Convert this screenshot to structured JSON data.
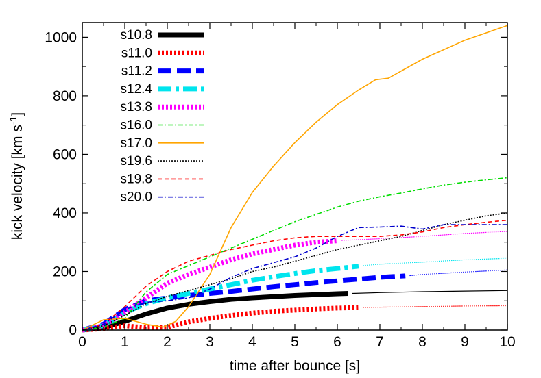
{
  "chart_data": {
    "type": "line",
    "xlabel": "time after bounce [s]",
    "ylabel": {
      "main": "kick velocity [km s",
      "sup": "-1",
      "close": "]"
    },
    "xlim": [
      0,
      10
    ],
    "ylim": [
      0,
      1050
    ],
    "xticks": [
      "0",
      "1",
      "2",
      "3",
      "4",
      "5",
      "6",
      "7",
      "8",
      "9",
      "10"
    ],
    "yticks": [
      "0",
      "200",
      "400",
      "600",
      "800",
      "1000"
    ],
    "series": [
      {
        "name": "s10.8",
        "color": "#000000",
        "style": "solid-thick",
        "x": [
          0,
          0.5,
          1,
          1.5,
          2,
          2.5,
          3,
          3.5,
          4,
          4.5,
          5,
          5.5,
          6,
          6.25
        ],
        "y": [
          0,
          8,
          30,
          55,
          75,
          88,
          97,
          105,
          110,
          114,
          118,
          121,
          124,
          125
        ],
        "tail_x": [
          6.35,
          7,
          8,
          9,
          10
        ],
        "tail_y": [
          125,
          128,
          131,
          133,
          135
        ]
      },
      {
        "name": "s11.0",
        "color": "#ff0000",
        "style": "dotted-thick",
        "x": [
          0,
          0.5,
          1,
          1.5,
          2,
          2.5,
          3,
          3.5,
          4,
          4.5,
          5,
          5.5,
          6,
          6.5
        ],
        "y": [
          0,
          5,
          15,
          8,
          10,
          28,
          40,
          50,
          58,
          64,
          68,
          72,
          75,
          77
        ],
        "tail_x": [
          6.6,
          7,
          8,
          9,
          10
        ],
        "tail_y": [
          77,
          78,
          80,
          82,
          83
        ]
      },
      {
        "name": "s11.2",
        "color": "#0000ff",
        "style": "dashed-thick",
        "x": [
          0,
          0.5,
          1,
          1.5,
          2,
          2.5,
          3,
          3.5,
          4,
          4.5,
          5,
          5.5,
          6,
          6.5,
          7,
          7.6
        ],
        "y": [
          0,
          20,
          70,
          100,
          110,
          118,
          125,
          132,
          140,
          148,
          155,
          162,
          168,
          174,
          180,
          185
        ],
        "tail_x": [
          7.7,
          8,
          9,
          10
        ],
        "tail_y": [
          186,
          190,
          198,
          205
        ]
      },
      {
        "name": "s12.4",
        "color": "#00e5ee",
        "style": "dashdot-thick",
        "x": [
          0,
          0.5,
          1,
          1.5,
          2,
          2.5,
          3,
          3.5,
          4,
          4.5,
          5,
          5.5,
          6,
          6.5
        ],
        "y": [
          0,
          15,
          60,
          90,
          110,
          125,
          140,
          155,
          170,
          182,
          193,
          203,
          210,
          218
        ],
        "tail_x": [
          6.6,
          7,
          8,
          9,
          10
        ],
        "tail_y": [
          220,
          225,
          232,
          240,
          245
        ]
      },
      {
        "name": "s13.8",
        "color": "#ff00ff",
        "style": "dotted-thick",
        "x": [
          0,
          0.5,
          1,
          1.5,
          2,
          2.5,
          3,
          3.5,
          4,
          4.5,
          5,
          5.5,
          6
        ],
        "y": [
          0,
          15,
          60,
          110,
          160,
          190,
          215,
          240,
          260,
          275,
          290,
          300,
          305
        ],
        "tail_x": [
          6.1,
          7,
          8,
          9,
          10
        ],
        "tail_y": [
          306,
          312,
          320,
          330,
          337
        ]
      },
      {
        "name": "s16.0",
        "color": "#00dd00",
        "style": "dashdot-thin",
        "x": [
          0,
          0.5,
          1,
          1.5,
          2,
          2.5,
          3,
          3.5,
          4,
          4.5,
          5,
          5.5,
          6,
          6.5,
          7,
          7.5,
          8,
          8.5,
          9,
          9.5,
          10
        ],
        "y": [
          0,
          10,
          40,
          130,
          190,
          220,
          250,
          280,
          310,
          340,
          370,
          395,
          420,
          440,
          455,
          468,
          482,
          495,
          505,
          513,
          520
        ]
      },
      {
        "name": "s17.0",
        "color": "#ffa500",
        "style": "solid-thin",
        "x": [
          0,
          0.5,
          1,
          1.5,
          1.9,
          2.2,
          2.5,
          3,
          3.5,
          4,
          4.5,
          5,
          5.5,
          6,
          6.5,
          6.9,
          7.2,
          8,
          9,
          10
        ],
        "y": [
          0,
          35,
          40,
          20,
          10,
          30,
          80,
          190,
          350,
          470,
          560,
          640,
          710,
          770,
          820,
          855,
          860,
          925,
          990,
          1040
        ]
      },
      {
        "name": "s19.6",
        "color": "#000000",
        "style": "dotted-thin",
        "x": [
          0,
          0.5,
          1,
          1.5,
          2,
          2.5,
          3,
          3.5,
          4,
          4.5,
          5,
          5.5,
          6,
          6.5,
          7,
          7.5,
          8,
          8.5,
          9,
          9.5,
          10
        ],
        "y": [
          0,
          15,
          50,
          90,
          115,
          135,
          155,
          175,
          200,
          215,
          235,
          255,
          275,
          290,
          305,
          320,
          340,
          360,
          375,
          390,
          400
        ]
      },
      {
        "name": "s19.8",
        "color": "#ff0000",
        "style": "dashed-thin",
        "x": [
          0,
          0.5,
          1,
          1.5,
          2,
          2.5,
          3,
          3.5,
          4,
          4.5,
          5,
          5.5,
          6,
          6.5,
          7,
          7.5,
          8,
          8.5,
          9,
          9.5,
          10
        ],
        "y": [
          0,
          20,
          80,
          150,
          200,
          235,
          255,
          275,
          290,
          305,
          315,
          320,
          320,
          320,
          320,
          325,
          335,
          350,
          360,
          368,
          375
        ]
      },
      {
        "name": "s20.0",
        "color": "#0000cc",
        "style": "dashdot-thin",
        "x": [
          0,
          0.5,
          1,
          1.5,
          2,
          2.5,
          3,
          3.5,
          4,
          4.5,
          5,
          5.5,
          6,
          6.5,
          7,
          7.5,
          8,
          8.5,
          9,
          9.5,
          10
        ],
        "y": [
          0,
          20,
          70,
          95,
          100,
          110,
          140,
          180,
          210,
          230,
          250,
          280,
          320,
          350,
          352,
          355,
          345,
          360,
          360,
          360,
          360
        ]
      }
    ]
  }
}
